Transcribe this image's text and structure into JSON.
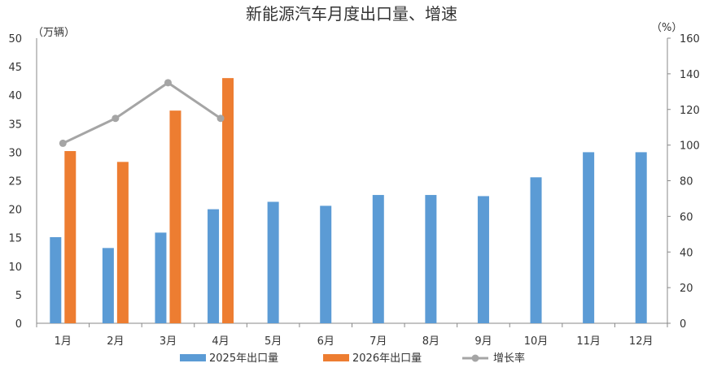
{
  "chart_data": {
    "type": "bar",
    "title": "新能源汽车月度出口量、增速",
    "y_left_unit": "（万辆）",
    "y_right_unit": "（%）",
    "categories": [
      "1月",
      "2月",
      "3月",
      "4月",
      "5月",
      "6月",
      "7月",
      "8月",
      "9月",
      "10月",
      "11月",
      "12月"
    ],
    "ylim_left": [
      0,
      50
    ],
    "yticks_left": [
      0,
      5,
      10,
      15,
      20,
      25,
      30,
      35,
      40,
      45,
      50
    ],
    "ylim_right": [
      0,
      160
    ],
    "yticks_right": [
      0,
      20,
      40,
      60,
      80,
      100,
      120,
      140,
      160
    ],
    "grid": false,
    "legend_position": "bottom",
    "series": [
      {
        "name": "2025年出口量",
        "type": "bar",
        "axis": "left",
        "color": "#5b9bd5",
        "values": [
          15.1,
          13.2,
          15.9,
          20.0,
          21.3,
          20.6,
          22.5,
          22.5,
          22.3,
          25.6,
          30.0,
          30.0
        ]
      },
      {
        "name": "2026年出口量",
        "type": "bar",
        "axis": "left",
        "color": "#ed7d31",
        "values": [
          30.2,
          28.3,
          37.3,
          43.0,
          null,
          null,
          null,
          null,
          null,
          null,
          null,
          null
        ]
      },
      {
        "name": "增长率",
        "type": "line",
        "axis": "right",
        "color": "#a5a5a5",
        "values": [
          101,
          115,
          135,
          115,
          null,
          null,
          null,
          null,
          null,
          null,
          null,
          null
        ]
      }
    ]
  }
}
